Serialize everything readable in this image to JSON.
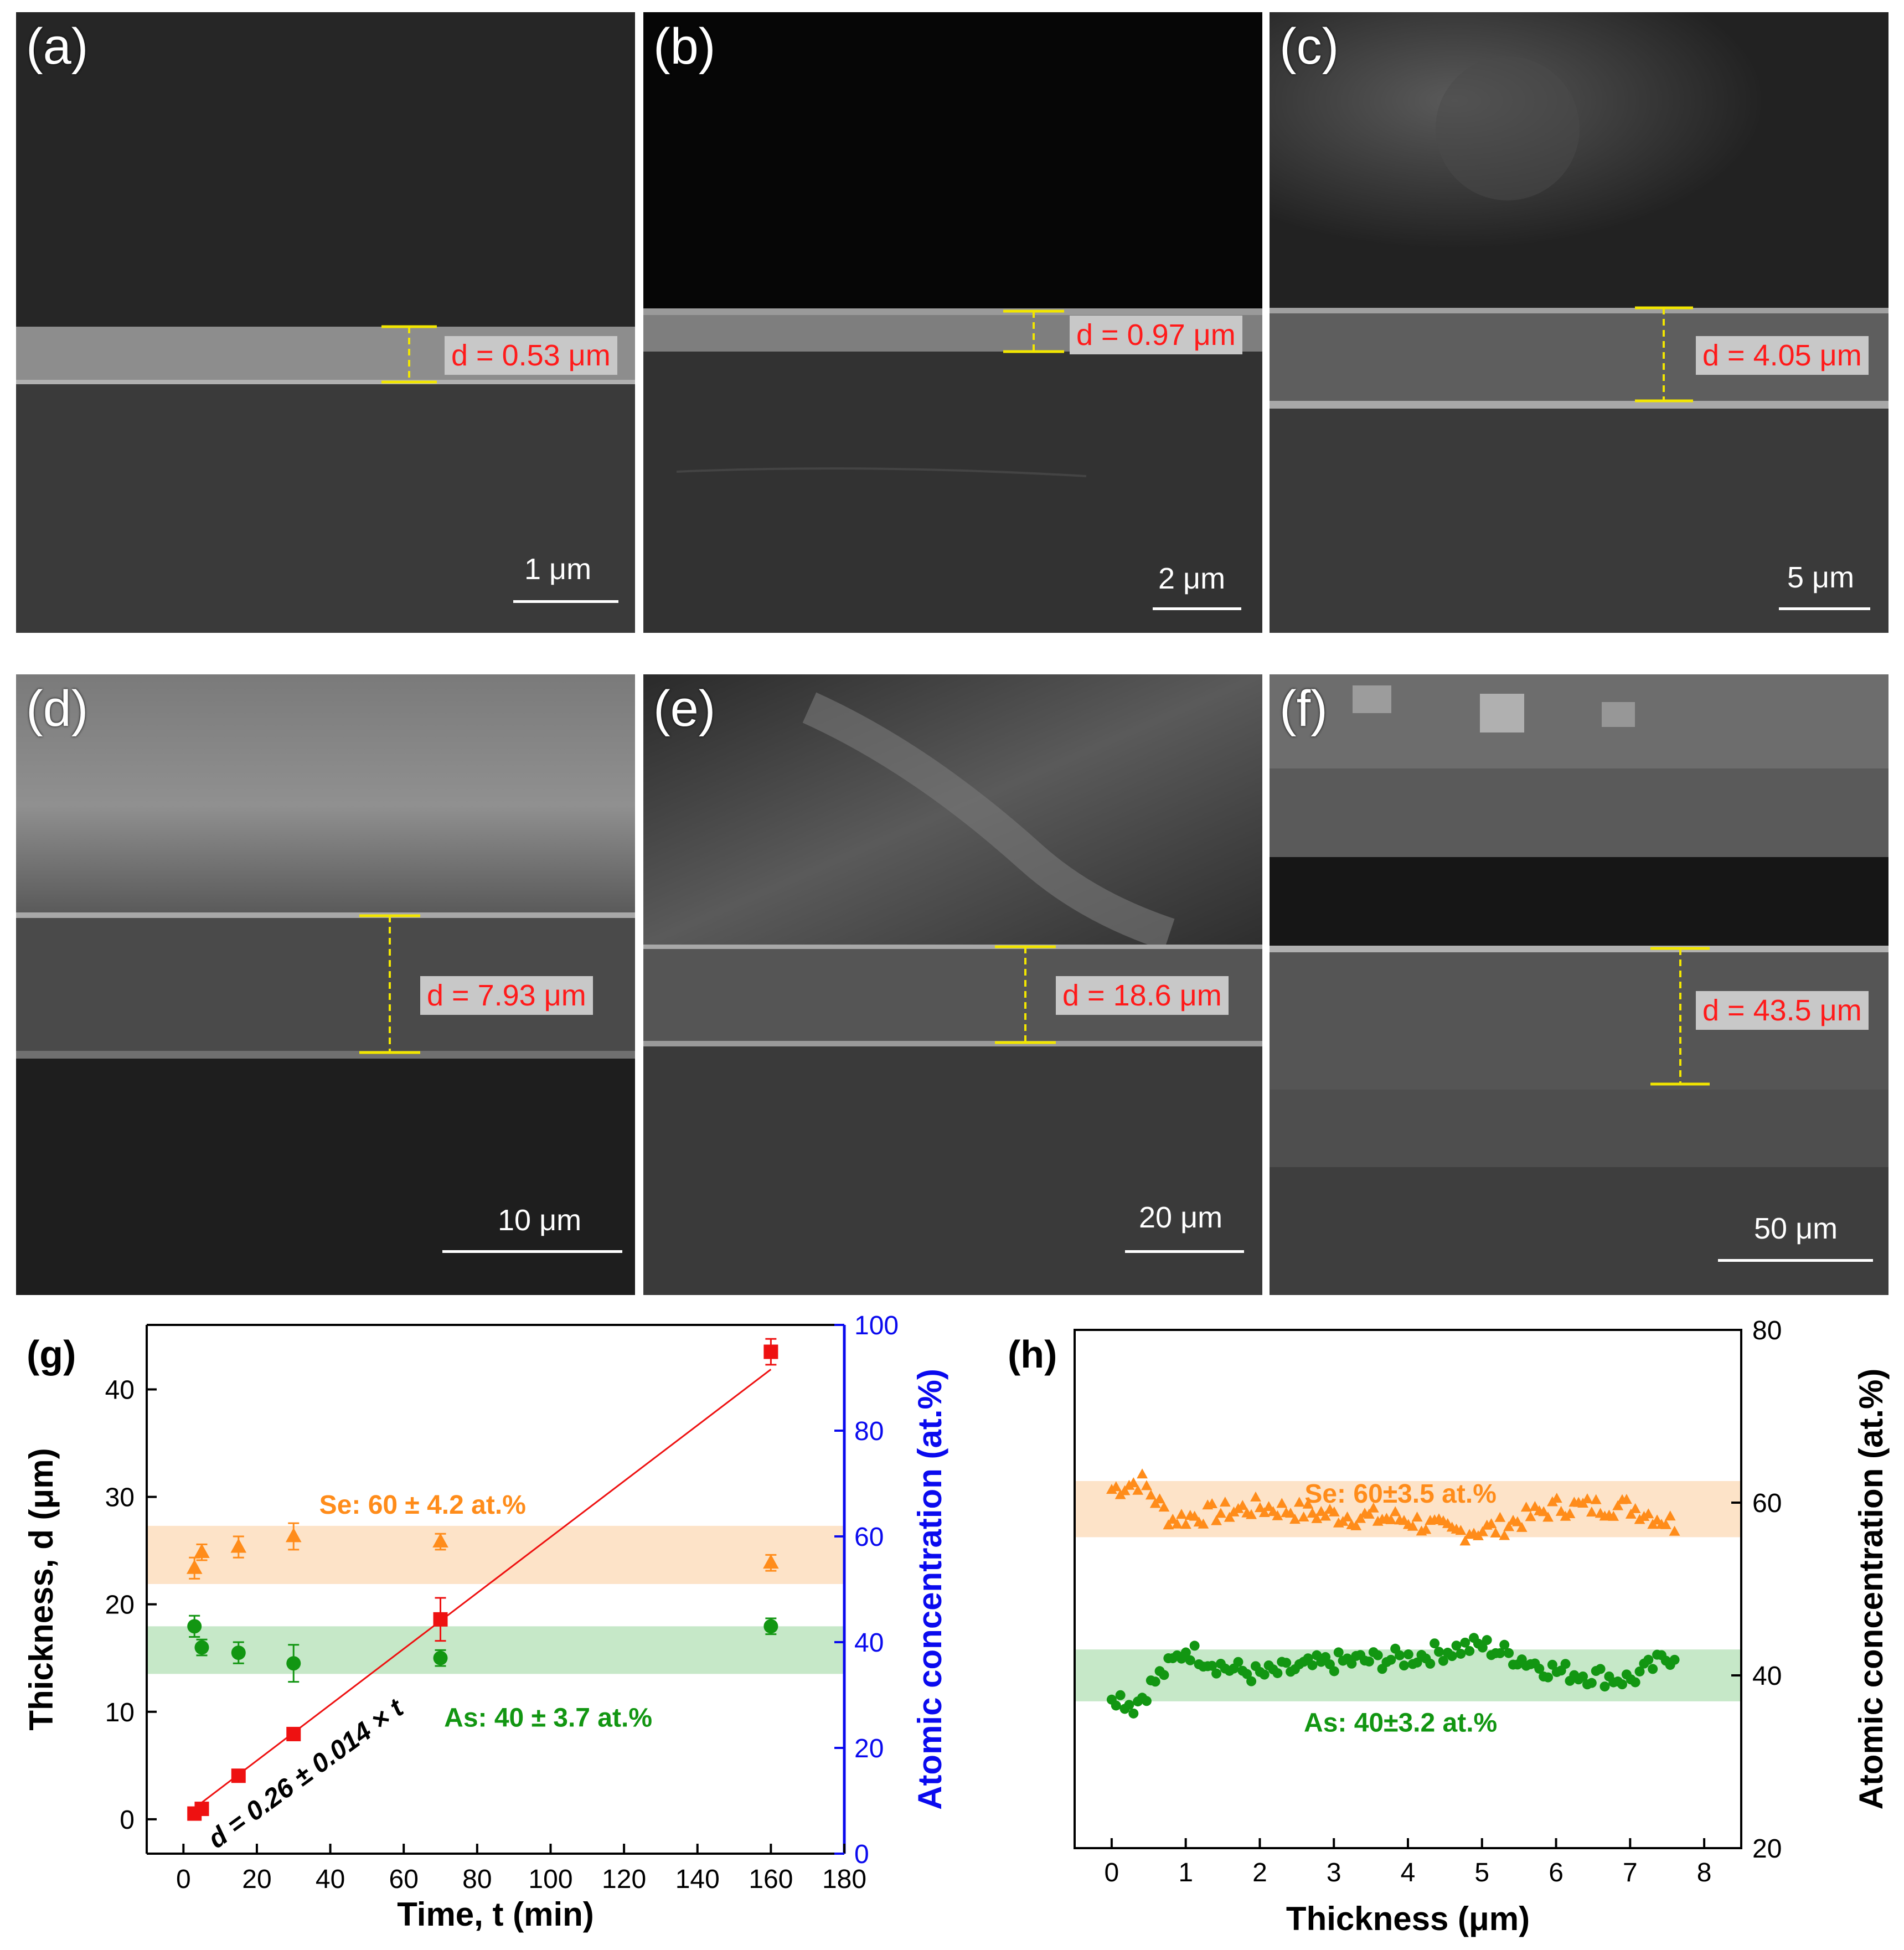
{
  "sem_panels": [
    {
      "label": "(a)",
      "thickness": "d = 0.53 μm",
      "scale": "1 μm"
    },
    {
      "label": "(b)",
      "thickness": "d = 0.97 μm",
      "scale": "2 μm"
    },
    {
      "label": "(c)",
      "thickness": "d = 4.05 μm",
      "scale": "5 μm"
    },
    {
      "label": "(d)",
      "thickness": "d = 7.93 μm",
      "scale": "10 μm"
    },
    {
      "label": "(e)",
      "thickness": "d = 18.6 μm",
      "scale": "20 μm"
    },
    {
      "label": "(f)",
      "thickness": "d = 43.5 μm",
      "scale": "50 μm"
    }
  ],
  "colors": {
    "se": "#ff8c1a",
    "as": "#129612",
    "fit": "#ee1111",
    "right_axis_g": "#0a0aee",
    "yellow": "#f2e600",
    "label_red": "#ff1a1a"
  },
  "chart_data": [
    {
      "type": "scatter",
      "panel_label": "(g)",
      "xlabel": "Time, t (min)",
      "ylabel": "Thickness, d (μm)",
      "y2label": "Atomic concentration (at.%)",
      "xlim": [
        -10,
        180
      ],
      "ylim": [
        -3.2,
        46
      ],
      "y2lim": [
        0,
        100
      ],
      "xticks": [
        0,
        20,
        40,
        60,
        80,
        100,
        120,
        140,
        160,
        180
      ],
      "yticks": [
        0,
        10,
        20,
        30,
        40
      ],
      "y2ticks": [
        0,
        20,
        40,
        60,
        80,
        100
      ],
      "series": [
        {
          "name": "thickness",
          "axis": "left",
          "marker": "square",
          "x": [
            3,
            5,
            15,
            30,
            70,
            160
          ],
          "y": [
            0.53,
            0.97,
            4.05,
            7.93,
            18.6,
            43.5
          ],
          "yerr": [
            0.1,
            0.1,
            0.2,
            0.3,
            2.0,
            1.2
          ]
        },
        {
          "axis": "right",
          "marker": "triangle",
          "x": [
            3,
            5,
            15,
            30,
            70,
            160
          ],
          "y": [
            54,
            57,
            58,
            60,
            59,
            55
          ],
          "yerr": [
            2,
            1.5,
            2,
            2.5,
            1.5,
            1.5
          ]
        },
        {
          "axis": "right",
          "marker": "circle",
          "x": [
            3,
            5,
            15,
            30,
            70,
            160
          ],
          "y": [
            43,
            39,
            38,
            36,
            37,
            43
          ],
          "yerr": [
            2,
            1.5,
            2,
            3.5,
            1.5,
            1.5
          ]
        }
      ],
      "fit": {
        "intercept": 0.26,
        "slope": 0.26,
        "x": [
          3,
          160
        ],
        "label": "d = 0.26 ± 0.014 × t"
      },
      "bands": [
        {
          "axis": "right",
          "from": 51,
          "to": 62,
          "label": "Se: 60 ± 4.2 at.%"
        },
        {
          "axis": "right",
          "from": 34,
          "to": 43,
          "label": "As: 40 ± 3.7 at.%"
        }
      ]
    },
    {
      "type": "scatter",
      "panel_label": "(h)",
      "xlabel": "Thickness (μm)",
      "ylabel": "Atomic concentration (at.%)",
      "xlim": [
        -0.5,
        8.5
      ],
      "ylim": [
        20,
        80
      ],
      "xticks": [
        0,
        1,
        2,
        3,
        4,
        5,
        6,
        7,
        8
      ],
      "yticks": [
        20,
        40,
        60,
        80
      ],
      "x_range": [
        0,
        7.6
      ],
      "points_per_series": 130,
      "series": [
        {
          "marker": "triangle",
          "mean": 58.5,
          "variation": [
            [
              0,
              61.5
            ],
            [
              0.4,
              62.5
            ],
            [
              0.8,
              58
            ],
            [
              1.2,
              58.5
            ],
            [
              2,
              59.5
            ],
            [
              3,
              58.5
            ],
            [
              4,
              58
            ],
            [
              4.6,
              56.5
            ],
            [
              5.2,
              57
            ],
            [
              6,
              59.5
            ],
            [
              7,
              59.5
            ],
            [
              7.6,
              57.5
            ]
          ]
        },
        {
          "marker": "circle",
          "mean": 40.5,
          "variation": [
            [
              0,
              38
            ],
            [
              0.3,
              36.5
            ],
            [
              0.6,
              39.5
            ],
            [
              1,
              43
            ],
            [
              1.5,
              41
            ],
            [
              2,
              40
            ],
            [
              3,
              41.5
            ],
            [
              4,
              42
            ],
            [
              4.6,
              43
            ],
            [
              5,
              43.5
            ],
            [
              6,
              40.5
            ],
            [
              7,
              39.5
            ],
            [
              7.6,
              42.5
            ]
          ]
        }
      ],
      "bands": [
        {
          "from": 56,
          "to": 62.5,
          "label": "Se: 60±3.5 at.%"
        },
        {
          "from": 37,
          "to": 43,
          "label": "As: 40±3.2 at.%"
        }
      ]
    }
  ]
}
